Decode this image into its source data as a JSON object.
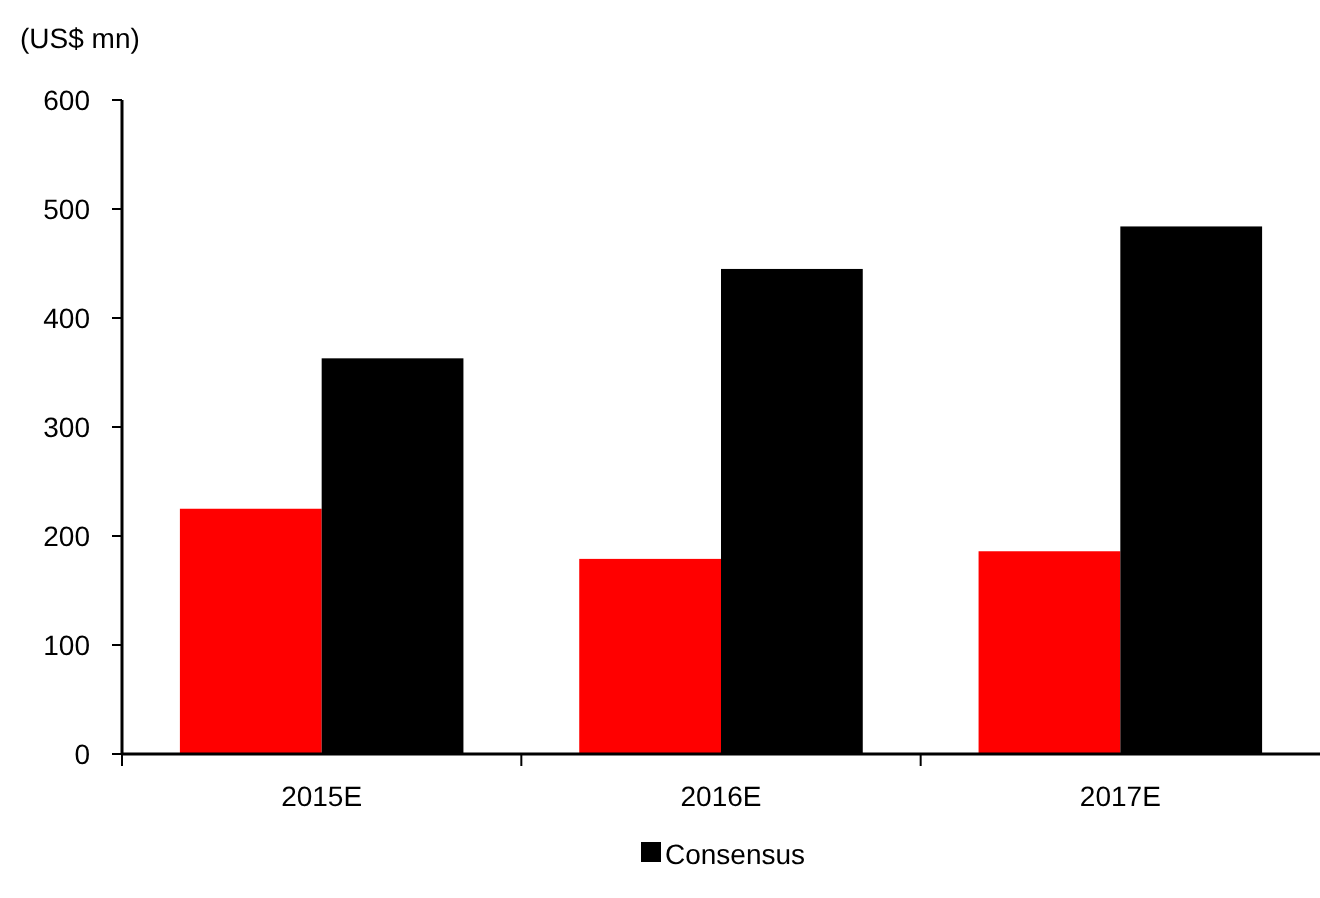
{
  "chart_data": {
    "type": "bar",
    "ylabel": "(US$ mn)",
    "categories": [
      "2015E",
      "2016E",
      "2017E"
    ],
    "series": [
      {
        "color": "#ff0000",
        "values": [
          225,
          179,
          186
        ]
      },
      {
        "name": "Consensus",
        "color": "#000000",
        "values": [
          363,
          445,
          484
        ]
      }
    ],
    "ylim": [
      0,
      600
    ],
    "yticks": [
      0,
      100,
      200,
      300,
      400,
      500,
      600
    ],
    "grid": false,
    "legend": "bottom"
  }
}
